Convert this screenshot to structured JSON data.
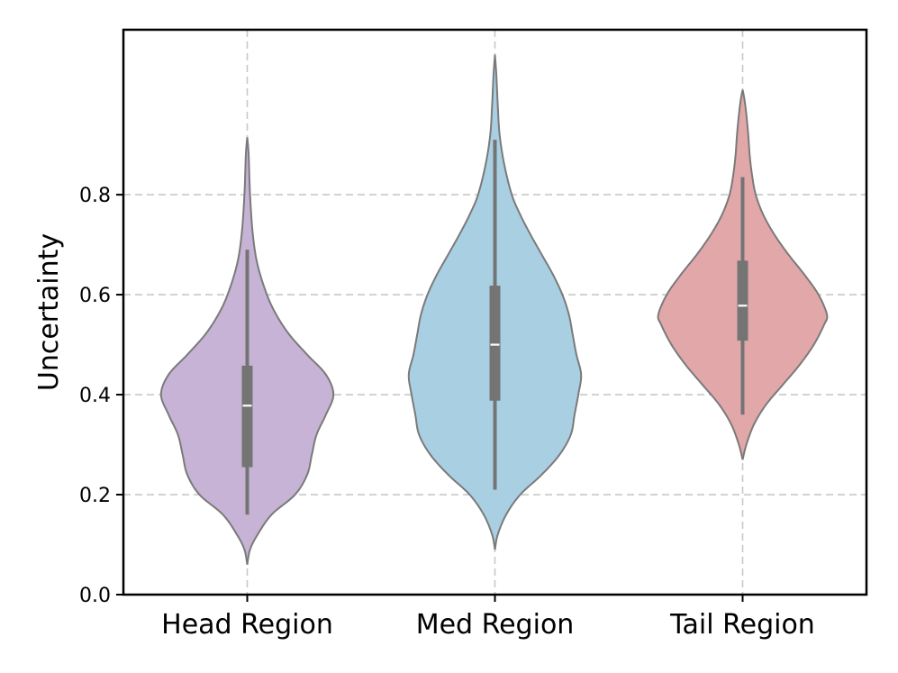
{
  "chart_data": {
    "type": "violin",
    "title": "",
    "xlabel": "",
    "ylabel": "Uncertainty",
    "ylim": [
      0.0,
      1.13
    ],
    "yticks": [
      0.0,
      0.2,
      0.4,
      0.6,
      0.8
    ],
    "ytick_labels": [
      "0.0",
      "0.2",
      "0.4",
      "0.6",
      "0.8"
    ],
    "grid": true,
    "categories": [
      "Head Region",
      "Med Region",
      "Tail Region"
    ],
    "series": [
      {
        "category": "Head Region",
        "color": "#c6b3d6",
        "min": 0.06,
        "max": 0.915,
        "whisker_low": 0.16,
        "q1": 0.255,
        "median": 0.378,
        "q3": 0.458,
        "whisker_high": 0.69,
        "density_profile": [
          [
            0.06,
            0.0
          ],
          [
            0.09,
            0.03
          ],
          [
            0.12,
            0.11
          ],
          [
            0.16,
            0.26
          ],
          [
            0.2,
            0.51
          ],
          [
            0.24,
            0.64
          ],
          [
            0.28,
            0.69
          ],
          [
            0.32,
            0.74
          ],
          [
            0.36,
            0.84
          ],
          [
            0.4,
            0.92
          ],
          [
            0.44,
            0.84
          ],
          [
            0.48,
            0.64
          ],
          [
            0.52,
            0.45
          ],
          [
            0.56,
            0.31
          ],
          [
            0.6,
            0.21
          ],
          [
            0.66,
            0.11
          ],
          [
            0.72,
            0.06
          ],
          [
            0.8,
            0.03
          ],
          [
            0.88,
            0.015
          ],
          [
            0.915,
            0.0
          ]
        ]
      },
      {
        "category": "Med Region",
        "color": "#a9cfe3",
        "min": 0.09,
        "max": 1.08,
        "whisker_low": 0.21,
        "q1": 0.388,
        "median": 0.5,
        "q3": 0.618,
        "whisker_high": 0.91,
        "density_profile": [
          [
            0.09,
            0.0
          ],
          [
            0.12,
            0.03
          ],
          [
            0.16,
            0.12
          ],
          [
            0.2,
            0.27
          ],
          [
            0.24,
            0.5
          ],
          [
            0.28,
            0.69
          ],
          [
            0.32,
            0.81
          ],
          [
            0.36,
            0.85
          ],
          [
            0.4,
            0.89
          ],
          [
            0.44,
            0.92
          ],
          [
            0.48,
            0.87
          ],
          [
            0.52,
            0.83
          ],
          [
            0.56,
            0.79
          ],
          [
            0.6,
            0.72
          ],
          [
            0.64,
            0.62
          ],
          [
            0.68,
            0.5
          ],
          [
            0.72,
            0.38
          ],
          [
            0.76,
            0.27
          ],
          [
            0.8,
            0.18
          ],
          [
            0.86,
            0.1
          ],
          [
            0.92,
            0.05
          ],
          [
            0.98,
            0.03
          ],
          [
            1.04,
            0.015
          ],
          [
            1.08,
            0.0
          ]
        ]
      },
      {
        "category": "Tail Region",
        "color": "#e2a7a9",
        "min": 0.27,
        "max": 1.01,
        "whisker_low": 0.36,
        "q1": 0.508,
        "median": 0.578,
        "q3": 0.668,
        "whisker_high": 0.835,
        "density_profile": [
          [
            0.27,
            0.0
          ],
          [
            0.3,
            0.04
          ],
          [
            0.34,
            0.12
          ],
          [
            0.38,
            0.25
          ],
          [
            0.42,
            0.43
          ],
          [
            0.46,
            0.61
          ],
          [
            0.5,
            0.76
          ],
          [
            0.54,
            0.87
          ],
          [
            0.56,
            0.9
          ],
          [
            0.6,
            0.81
          ],
          [
            0.64,
            0.66
          ],
          [
            0.68,
            0.49
          ],
          [
            0.72,
            0.34
          ],
          [
            0.76,
            0.22
          ],
          [
            0.8,
            0.14
          ],
          [
            0.84,
            0.1
          ],
          [
            0.88,
            0.075
          ],
          [
            0.92,
            0.06
          ],
          [
            0.96,
            0.04
          ],
          [
            0.99,
            0.02
          ],
          [
            1.01,
            0.0
          ]
        ]
      }
    ]
  }
}
